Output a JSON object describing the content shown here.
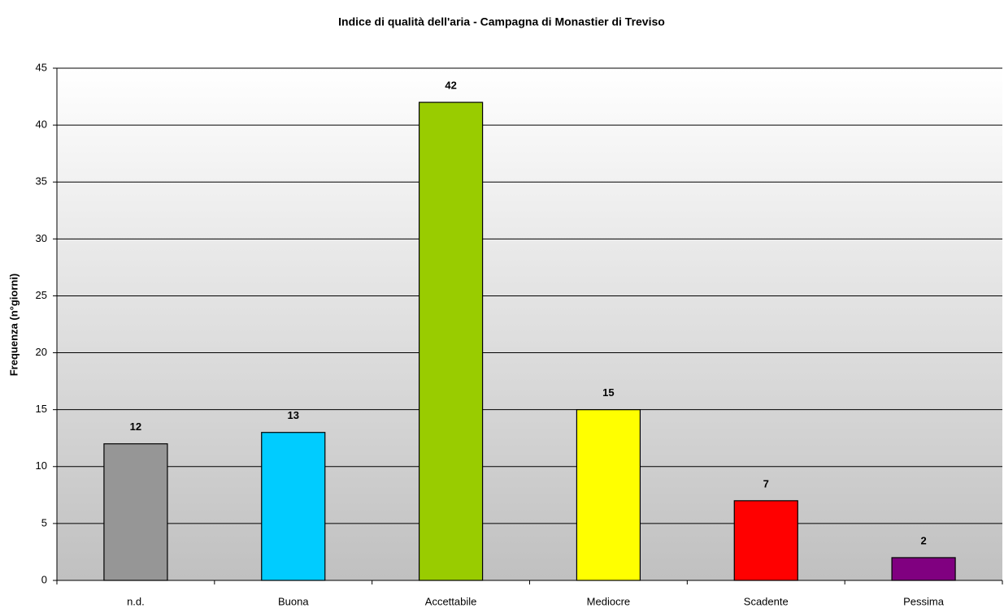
{
  "chart_data": {
    "type": "bar",
    "title": "Indice di qualità dell'aria - Campagna di Monastier di Treviso",
    "y_label": "Frequenza (n°giorni)",
    "categories": [
      "n.d.",
      "Buona",
      "Accettabile",
      "Mediocre",
      "Scadente",
      "Pessima"
    ],
    "values": [
      12,
      13,
      42,
      15,
      7,
      2
    ],
    "colors": [
      "#969696",
      "#00ccff",
      "#99cc00",
      "#ffff00",
      "#ff0000",
      "#800080"
    ],
    "ylim": [
      0,
      45
    ],
    "yticks": [
      0,
      5,
      10,
      15,
      20,
      25,
      30,
      35,
      40,
      45
    ],
    "grid": true
  }
}
